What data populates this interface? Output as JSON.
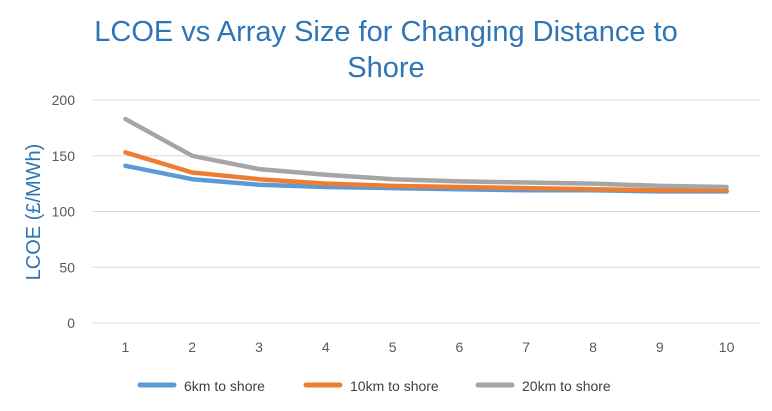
{
  "chart_data": {
    "type": "line",
    "title": "LCOE vs Array Size for Changing Distance to Shore",
    "title_line1": "LCOE vs Array Size for Changing Distance to",
    "title_line2": "Shore",
    "xlabel": "",
    "ylabel": "LCOE (£/MWh)",
    "categories": [
      "1",
      "2",
      "3",
      "4",
      "5",
      "6",
      "7",
      "8",
      "9",
      "10"
    ],
    "ylim": [
      0,
      200
    ],
    "yticks": [
      "0",
      "50",
      "100",
      "150",
      "200"
    ],
    "grid": true,
    "legend_position": "bottom",
    "series": [
      {
        "name": "6km to shore",
        "color": "#5b9bd5",
        "values": [
          141,
          129,
          124,
          122,
          121,
          120,
          119,
          119,
          118,
          118
        ]
      },
      {
        "name": "10km to shore",
        "color": "#ed7d31",
        "values": [
          153,
          135,
          129,
          125,
          123,
          122,
          121,
          120,
          119,
          119
        ]
      },
      {
        "name": "20km to shore",
        "color": "#a5a5a5",
        "values": [
          183,
          150,
          138,
          133,
          129,
          127,
          126,
          125,
          123,
          122
        ]
      }
    ]
  }
}
